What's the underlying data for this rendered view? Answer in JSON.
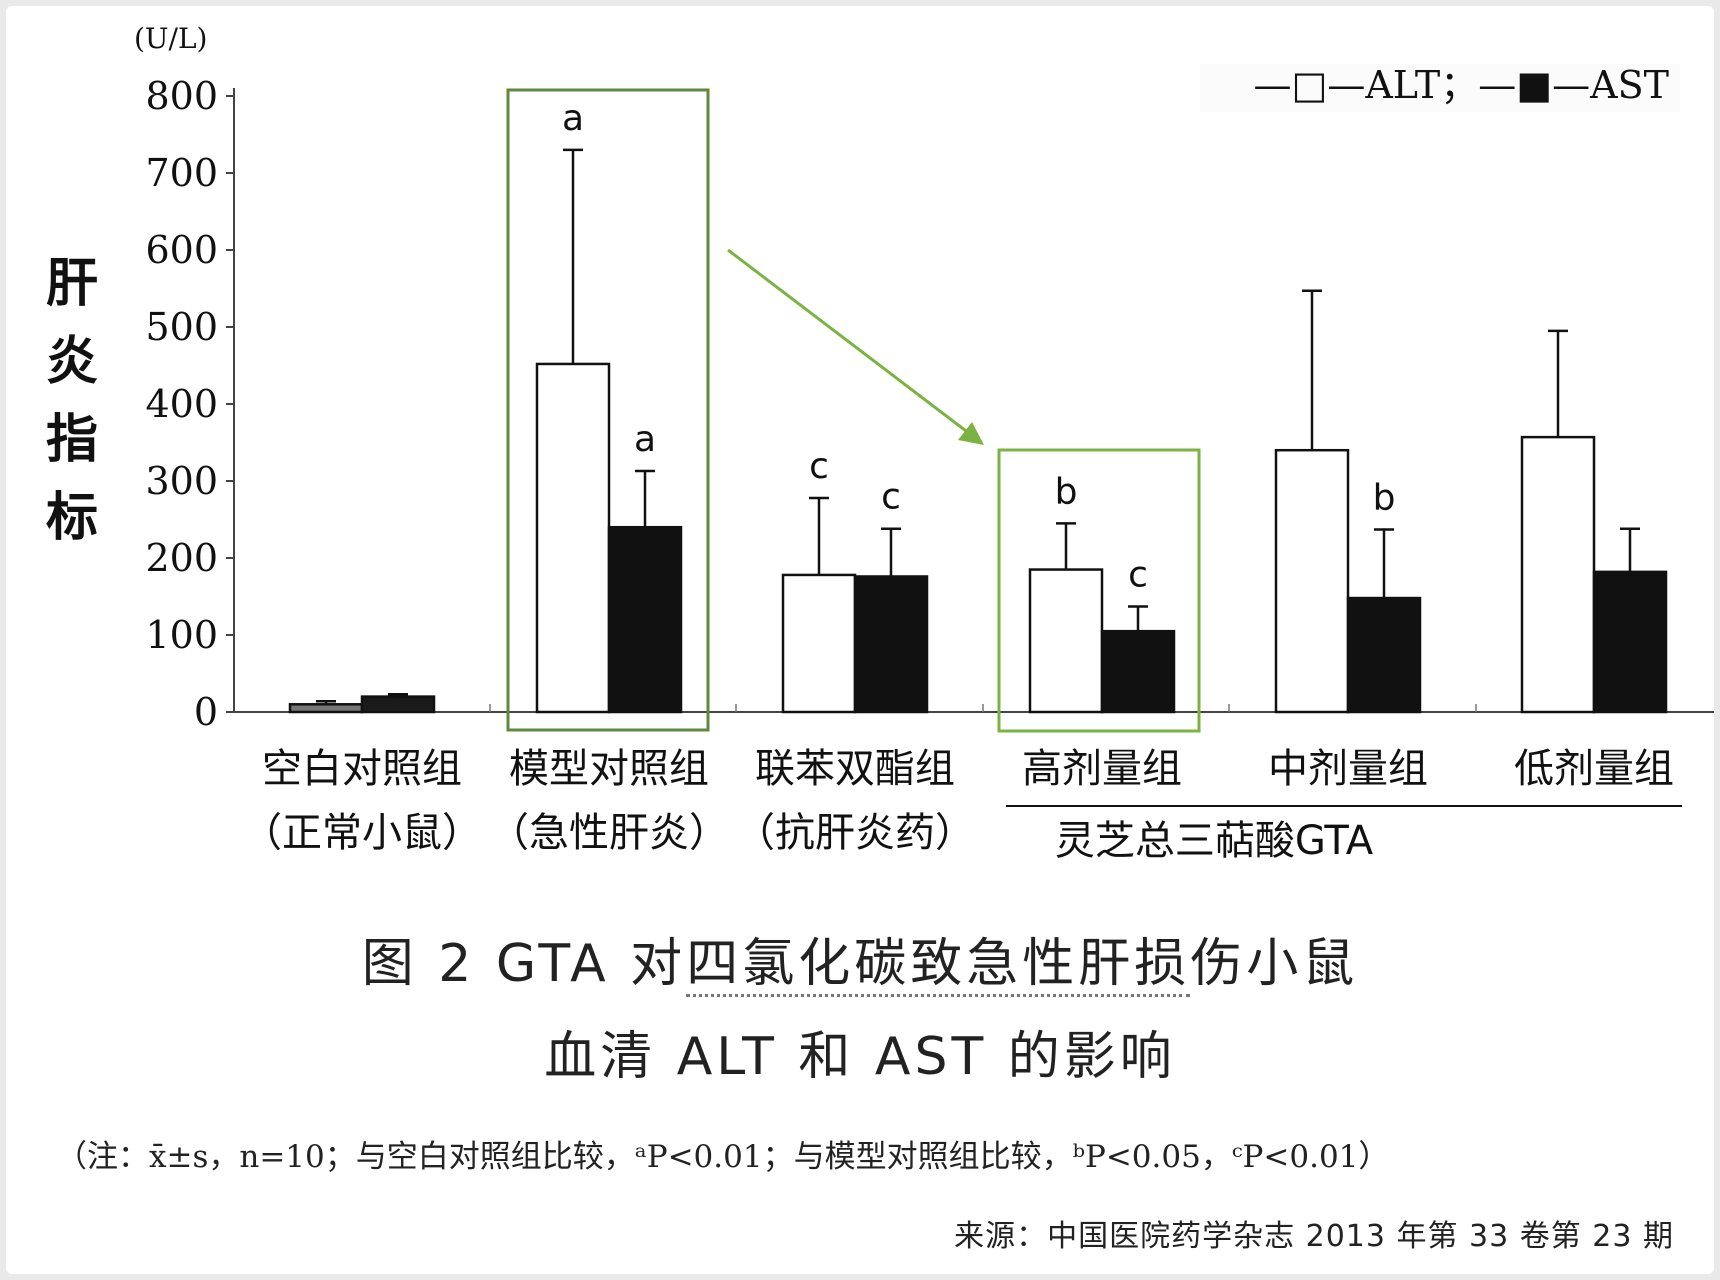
{
  "chart_data": {
    "type": "bar",
    "unit_label": "(U/L)",
    "ylabel": "肝炎指标",
    "ylim": [
      0,
      800
    ],
    "yticks": [
      "0",
      "100",
      "200",
      "300",
      "400",
      "500",
      "600",
      "700",
      "800"
    ],
    "grid": false,
    "legend_position": "top-right",
    "legend_text": "—□—ALT；—■—AST",
    "categories": [
      {
        "line1": "空白对照组",
        "line2": "（正常小鼠）"
      },
      {
        "line1": "模型对照组",
        "line2": "（急性肝炎）"
      },
      {
        "line1": "联苯双酯组",
        "line2": "（抗肝炎药）"
      },
      {
        "line1": "高剂量组",
        "line2": ""
      },
      {
        "line1": "中剂量组",
        "line2": ""
      },
      {
        "line1": "低剂量组",
        "line2": ""
      }
    ],
    "group_label": "灵芝总三萜酸GTA",
    "series": [
      {
        "name": "ALT",
        "values": [
          10,
          452,
          178,
          185,
          340,
          357
        ],
        "errors": [
          4,
          278,
          100,
          60,
          207,
          138
        ],
        "sig": [
          "",
          "a",
          "c",
          "b",
          "",
          ""
        ]
      },
      {
        "name": "AST",
        "values": [
          20,
          240,
          176,
          105,
          148,
          182
        ],
        "errors": [
          3,
          73,
          62,
          32,
          89,
          56
        ],
        "sig": [
          "",
          "a",
          "c",
          "c",
          "b",
          ""
        ]
      }
    ],
    "highlight_color": "#7bb342",
    "dark_box_color": "#5f8a3e"
  },
  "caption": {
    "prefix": "图 2 GTA 对",
    "underlined": "四氯化碳致急性肝损",
    "suffix": "伤小鼠",
    "line2": "血清 ALT 和 AST 的影响"
  },
  "note": "（注：x̄±s，n=10；与空白对照组比较，ᵃP<0.01；与模型对照组比较，ᵇP<0.05，ᶜP<0.01）",
  "source": "来源：中国医院药学杂志 2013 年第 33 卷第 23 期"
}
